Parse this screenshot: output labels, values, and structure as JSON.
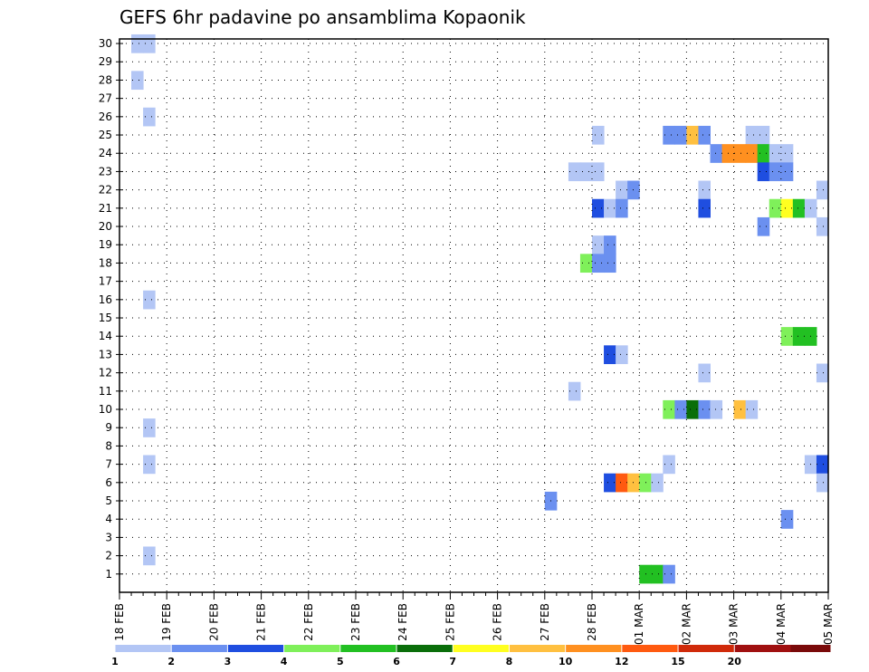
{
  "chart_data": {
    "type": "heatmap",
    "title": "GEFS 6hr padavine po ansamblima Kopaonik",
    "xlabel": "",
    "ylabel": "",
    "x_ticks": [
      "18 FEB",
      "19 FEB",
      "20 FEB",
      "21 FEB",
      "22 FEB",
      "23 FEB",
      "24 FEB",
      "25 FEB",
      "26 FEB",
      "27 FEB",
      "28 FEB",
      "01 MAR",
      "02 MAR",
      "03 MAR",
      "04 MAR",
      "05 MAR"
    ],
    "y_ticks": [
      "1",
      "2",
      "3",
      "4",
      "5",
      "6",
      "7",
      "8",
      "9",
      "10",
      "11",
      "12",
      "13",
      "14",
      "15",
      "16",
      "17",
      "18",
      "19",
      "20",
      "21",
      "22",
      "23",
      "24",
      "25",
      "26",
      "27",
      "28",
      "29",
      "30"
    ],
    "xlim_days": [
      0,
      15
    ],
    "ylim": [
      0,
      30
    ],
    "grid": true,
    "step": "6hr",
    "colorbar": {
      "labels": [
        "1",
        "2",
        "3",
        "4",
        "5",
        "6",
        "7",
        "8",
        "10",
        "12",
        "15",
        "20"
      ],
      "colors": [
        "#b3c6f5",
        "#6b90f0",
        "#1f4ee0",
        "#7ff05a",
        "#22c022",
        "#0a6e0a",
        "#ffff20",
        "#ffc040",
        "#ff9020",
        "#ff5a10",
        "#d02a0a",
        "#a01010",
        "#7a0a0a"
      ]
    },
    "cells": [
      {
        "day": 0.25,
        "member": 30,
        "level": 1
      },
      {
        "day": 0.5,
        "member": 30,
        "level": 1
      },
      {
        "day": 0.25,
        "member": 28,
        "level": 1
      },
      {
        "day": 0.5,
        "member": 26,
        "level": 1
      },
      {
        "day": 10.0,
        "member": 25,
        "level": 1
      },
      {
        "day": 11.5,
        "member": 25,
        "level": 2
      },
      {
        "day": 11.75,
        "member": 25,
        "level": 2
      },
      {
        "day": 12.0,
        "member": 25,
        "level": 8
      },
      {
        "day": 12.25,
        "member": 25,
        "level": 2
      },
      {
        "day": 13.25,
        "member": 25,
        "level": 1
      },
      {
        "day": 13.5,
        "member": 25,
        "level": 1
      },
      {
        "day": 12.5,
        "member": 24,
        "level": 2
      },
      {
        "day": 12.75,
        "member": 24,
        "level": 9
      },
      {
        "day": 13.0,
        "member": 24,
        "level": 9
      },
      {
        "day": 13.25,
        "member": 24,
        "level": 9
      },
      {
        "day": 13.5,
        "member": 24,
        "level": 5
      },
      {
        "day": 13.75,
        "member": 24,
        "level": 1
      },
      {
        "day": 14.0,
        "member": 24,
        "level": 1
      },
      {
        "day": 9.5,
        "member": 23,
        "level": 1
      },
      {
        "day": 9.75,
        "member": 23,
        "level": 1
      },
      {
        "day": 10.0,
        "member": 23,
        "level": 1
      },
      {
        "day": 13.5,
        "member": 23,
        "level": 3
      },
      {
        "day": 13.75,
        "member": 23,
        "level": 2
      },
      {
        "day": 14.0,
        "member": 23,
        "level": 2
      },
      {
        "day": 10.5,
        "member": 22,
        "level": 1
      },
      {
        "day": 10.75,
        "member": 22,
        "level": 2
      },
      {
        "day": 12.25,
        "member": 22,
        "level": 1
      },
      {
        "day": 14.75,
        "member": 22,
        "level": 1
      },
      {
        "day": 10.0,
        "member": 21,
        "level": 3
      },
      {
        "day": 10.25,
        "member": 21,
        "level": 1
      },
      {
        "day": 10.5,
        "member": 21,
        "level": 2
      },
      {
        "day": 12.25,
        "member": 21,
        "level": 3
      },
      {
        "day": 13.75,
        "member": 21,
        "level": 4
      },
      {
        "day": 14.0,
        "member": 21,
        "level": 7
      },
      {
        "day": 14.25,
        "member": 21,
        "level": 5
      },
      {
        "day": 14.5,
        "member": 21,
        "level": 1
      },
      {
        "day": 13.5,
        "member": 20,
        "level": 2
      },
      {
        "day": 14.75,
        "member": 20,
        "level": 1
      },
      {
        "day": 10.0,
        "member": 19,
        "level": 1
      },
      {
        "day": 10.25,
        "member": 19,
        "level": 2
      },
      {
        "day": 9.75,
        "member": 18,
        "level": 4
      },
      {
        "day": 10.0,
        "member": 18,
        "level": 2
      },
      {
        "day": 10.25,
        "member": 18,
        "level": 2
      },
      {
        "day": 0.5,
        "member": 16,
        "level": 1
      },
      {
        "day": 14.0,
        "member": 14,
        "level": 4
      },
      {
        "day": 14.25,
        "member": 14,
        "level": 5
      },
      {
        "day": 14.5,
        "member": 14,
        "level": 5
      },
      {
        "day": 10.25,
        "member": 13,
        "level": 3
      },
      {
        "day": 10.5,
        "member": 13,
        "level": 1
      },
      {
        "day": 12.25,
        "member": 12,
        "level": 1
      },
      {
        "day": 14.75,
        "member": 12,
        "level": 1
      },
      {
        "day": 9.5,
        "member": 11,
        "level": 1
      },
      {
        "day": 11.5,
        "member": 10,
        "level": 4
      },
      {
        "day": 11.75,
        "member": 10,
        "level": 2
      },
      {
        "day": 12.0,
        "member": 10,
        "level": 6
      },
      {
        "day": 12.25,
        "member": 10,
        "level": 2
      },
      {
        "day": 12.5,
        "member": 10,
        "level": 1
      },
      {
        "day": 13.0,
        "member": 10,
        "level": 8
      },
      {
        "day": 13.25,
        "member": 10,
        "level": 1
      },
      {
        "day": 0.5,
        "member": 9,
        "level": 1
      },
      {
        "day": 0.5,
        "member": 7,
        "level": 1
      },
      {
        "day": 11.5,
        "member": 7,
        "level": 1
      },
      {
        "day": 14.5,
        "member": 7,
        "level": 1
      },
      {
        "day": 14.75,
        "member": 7,
        "level": 3
      },
      {
        "day": 10.25,
        "member": 6,
        "level": 3
      },
      {
        "day": 10.5,
        "member": 6,
        "level": 10
      },
      {
        "day": 10.75,
        "member": 6,
        "level": 8
      },
      {
        "day": 11.0,
        "member": 6,
        "level": 4
      },
      {
        "day": 11.25,
        "member": 6,
        "level": 1
      },
      {
        "day": 14.75,
        "member": 6,
        "level": 1
      },
      {
        "day": 9.0,
        "member": 5,
        "level": 2
      },
      {
        "day": 14.0,
        "member": 4,
        "level": 2
      },
      {
        "day": 0.5,
        "member": 2,
        "level": 1
      },
      {
        "day": 11.0,
        "member": 1,
        "level": 5
      },
      {
        "day": 11.25,
        "member": 1,
        "level": 5
      },
      {
        "day": 11.5,
        "member": 1,
        "level": 2
      }
    ]
  }
}
